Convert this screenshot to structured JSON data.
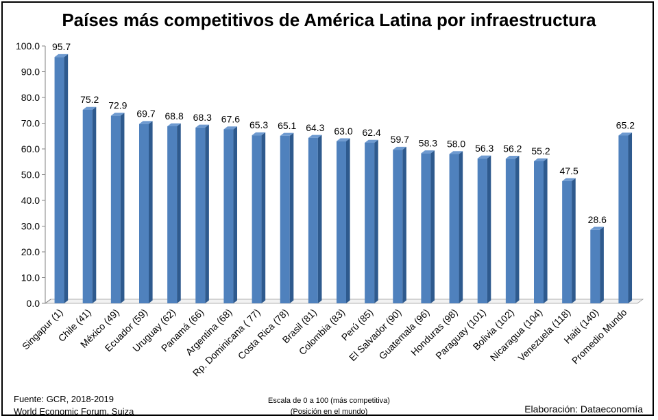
{
  "chart_data": {
    "type": "bar",
    "title": "Países más competitivos de América Latina por infraestructura",
    "categories": [
      "Singapur (1)",
      "Chile (41)",
      "México (49)",
      "Ecuador (59)",
      "Uruguay (62)",
      "Panamá (66)",
      "Argentina (68)",
      "Rp. Dominicana ( 77)",
      "Costa Rica (78)",
      "Brasil (81)",
      "Colombia (83)",
      "Perú (85)",
      "El Salvador (90)",
      "Guatemala (96)",
      "Honduras (98)",
      "Paraguay (101)",
      "Bolivia (102)",
      "Nicaragua (104)",
      "Venezuela (118)",
      "Haiti (140)",
      "Promedio Mundo"
    ],
    "values": [
      95.7,
      75.2,
      72.9,
      69.7,
      68.8,
      68.3,
      67.6,
      65.3,
      65.1,
      64.3,
      63.0,
      62.4,
      59.7,
      58.3,
      58.0,
      56.3,
      56.2,
      55.2,
      47.5,
      28.6,
      65.2
    ],
    "value_labels": [
      "95.7",
      "75.2",
      "72.9",
      "69.7",
      "68.8",
      "68.3",
      "67.6",
      "65.3",
      "65.1",
      "64.3",
      "63.0",
      "62.4",
      "59.7",
      "58.3",
      "58.0",
      "56.3",
      "56.2",
      "55.2",
      "47.5",
      "28.6",
      "65.2"
    ],
    "ylim": [
      0,
      100
    ],
    "yticks": [
      "0.0",
      "10.0",
      "20.0",
      "30.0",
      "40.0",
      "50.0",
      "60.0",
      "70.0",
      "80.0",
      "90.0",
      "100.0"
    ],
    "bar_color": "#4F81BD",
    "grid": false,
    "legend": "none"
  },
  "footer": {
    "source_line1": "Fuente:  GCR, 2018-2019",
    "source_line2": "World Economic Forum, Suiza",
    "scale_line1": "Escala de 0 a 100 (más competitiva)",
    "scale_line2": "(Posición en el mundo)",
    "credit": "Elaboración: Dataeconomía"
  }
}
